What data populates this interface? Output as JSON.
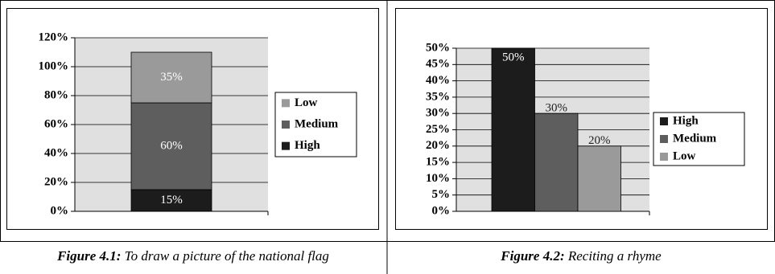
{
  "chart_data": [
    {
      "type": "stacked_bar",
      "series": [
        {
          "name": "High",
          "color": "#1c1c1c",
          "values": [
            15
          ],
          "value_labels": [
            "15%"
          ]
        },
        {
          "name": "Medium",
          "color": "#5e5e5e",
          "values": [
            60
          ],
          "value_labels": [
            "60%"
          ]
        },
        {
          "name": "Low",
          "color": "#9a9a9a",
          "values": [
            35
          ],
          "value_labels": [
            "35%"
          ]
        }
      ],
      "ylim": [
        0,
        120
      ],
      "yticks": [
        {
          "value": 0,
          "label": "0%"
        },
        {
          "value": 20,
          "label": "20%"
        },
        {
          "value": 40,
          "label": "40%"
        },
        {
          "value": 60,
          "label": "60%"
        },
        {
          "value": 80,
          "label": "80%"
        },
        {
          "value": 100,
          "label": "100%"
        },
        {
          "value": 120,
          "label": "120%"
        }
      ],
      "grid": true,
      "legend": "right",
      "caption_label": "Figure 4.1:",
      "caption_text": " To draw a picture of the national flag"
    },
    {
      "type": "bar",
      "series": [
        {
          "name": "High",
          "color": "#1c1c1c",
          "values": [
            50
          ],
          "value_labels": [
            "50%"
          ]
        },
        {
          "name": "Medium",
          "color": "#5e5e5e",
          "values": [
            30
          ],
          "value_labels": [
            "30%"
          ]
        },
        {
          "name": "Low",
          "color": "#9a9a9a",
          "values": [
            20
          ],
          "value_labels": [
            "20%"
          ]
        }
      ],
      "ylim": [
        0,
        50
      ],
      "yticks": [
        {
          "value": 0,
          "label": "0%"
        },
        {
          "value": 5,
          "label": "5%"
        },
        {
          "value": 10,
          "label": "10%"
        },
        {
          "value": 15,
          "label": "15%"
        },
        {
          "value": 20,
          "label": "20%"
        },
        {
          "value": 25,
          "label": "25%"
        },
        {
          "value": 30,
          "label": "30%"
        },
        {
          "value": 35,
          "label": "35%"
        },
        {
          "value": 40,
          "label": "40%"
        },
        {
          "value": 45,
          "label": "45%"
        },
        {
          "value": 50,
          "label": "50%"
        }
      ],
      "grid": true,
      "legend": "right",
      "caption_label": "Figure 4.2:",
      "caption_text": " Reciting a rhyme"
    }
  ]
}
